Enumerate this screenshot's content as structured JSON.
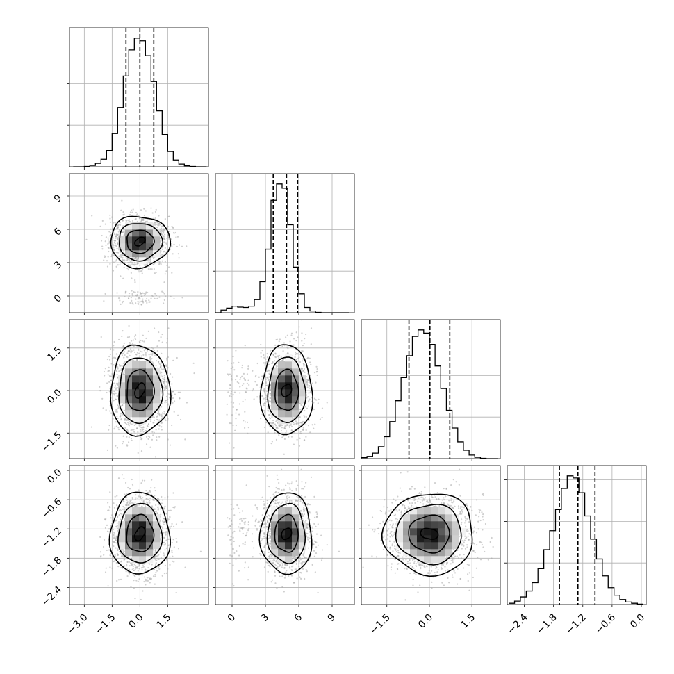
{
  "chart_data": {
    "type": "corner",
    "title": "",
    "grid": true,
    "parameters": [
      {
        "index": 0,
        "range": [
          -3.8,
          3.7
        ],
        "ticks": [
          -3.0,
          -1.5,
          0.0,
          1.5
        ],
        "tick_labels": [
          "−3.0",
          "−1.5",
          "0.0",
          "1.5"
        ],
        "quantiles": [
          -0.75,
          0.0,
          0.75
        ],
        "mean": 0.0,
        "sd": 0.73,
        "histogram": {
          "bin_edges": [
            -3.6,
            -3.3,
            -3.0,
            -2.7,
            -2.4,
            -2.1,
            -1.8,
            -1.5,
            -1.2,
            -0.9,
            -0.6,
            -0.3,
            0.0,
            0.3,
            0.6,
            0.9,
            1.2,
            1.5,
            1.8,
            2.1,
            2.4,
            2.7,
            3.0,
            3.3,
            3.6
          ],
          "counts": [
            0,
            0,
            1,
            4,
            10,
            22,
            48,
            98,
            175,
            268,
            345,
            380,
            372,
            328,
            252,
            165,
            95,
            45,
            20,
            8,
            3,
            1,
            0,
            0
          ]
        }
      },
      {
        "index": 1,
        "range": [
          -1.5,
          11.0
        ],
        "ticks": [
          0,
          3,
          6,
          9
        ],
        "tick_labels": [
          "0",
          "3",
          "6",
          "9"
        ],
        "quantiles": [
          3.7,
          4.9,
          5.9
        ],
        "mean": 4.9,
        "sd": 1.05,
        "histogram": {
          "bin_edges": [
            -1.5,
            -1.0,
            -0.5,
            0.0,
            0.5,
            1.0,
            1.5,
            2.0,
            2.5,
            3.0,
            3.5,
            4.0,
            4.5,
            5.0,
            5.5,
            6.0,
            6.5,
            7.0,
            7.5,
            8.0,
            8.5,
            9.0,
            9.5,
            10.0,
            10.5
          ],
          "counts": [
            0,
            8,
            14,
            20,
            17,
            16,
            20,
            40,
            95,
            195,
            345,
            395,
            382,
            270,
            140,
            58,
            16,
            5,
            1,
            0,
            0,
            0,
            0,
            0
          ]
        }
      },
      {
        "index": 2,
        "range": [
          -2.4,
          2.5
        ],
        "ticks": [
          -1.5,
          0.0,
          1.5
        ],
        "tick_labels": [
          "−1.5",
          "0.0",
          "1.5"
        ],
        "quantiles": [
          -0.72,
          0.02,
          0.72
        ],
        "mean": 0.0,
        "sd": 0.72,
        "histogram": {
          "bin_edges": [
            -2.4,
            -2.2,
            -2.0,
            -1.8,
            -1.6,
            -1.4,
            -1.2,
            -1.0,
            -0.8,
            -0.6,
            -0.4,
            -0.2,
            0.0,
            0.2,
            0.4,
            0.6,
            0.8,
            1.0,
            1.2,
            1.4,
            1.6,
            1.8,
            2.0,
            2.2,
            2.4
          ],
          "counts": [
            3,
            7,
            17,
            37,
            68,
            115,
            180,
            252,
            320,
            380,
            400,
            390,
            355,
            288,
            218,
            150,
            95,
            52,
            26,
            11,
            4,
            1,
            0,
            0
          ]
        }
      },
      {
        "index": 3,
        "range": [
          -2.75,
          0.1
        ],
        "ticks": [
          -2.4,
          -1.8,
          -1.2,
          -0.6,
          0.0
        ],
        "tick_labels": [
          "−2.4",
          "−1.8",
          "−1.2",
          "−0.6",
          "0.0"
        ],
        "quantiles": [
          -1.68,
          -1.3,
          -0.95
        ],
        "mean": -1.3,
        "sd": 0.38,
        "histogram": {
          "bin_edges": [
            -2.72,
            -2.6,
            -2.48,
            -2.36,
            -2.24,
            -2.12,
            -2.0,
            -1.88,
            -1.76,
            -1.64,
            -1.52,
            -1.4,
            -1.28,
            -1.16,
            -1.04,
            -0.92,
            -0.8,
            -0.68,
            -0.56,
            -0.44,
            -0.32,
            -0.2,
            -0.08,
            0.04
          ],
          "counts": [
            3,
            8,
            18,
            32,
            52,
            85,
            130,
            175,
            225,
            275,
            305,
            300,
            265,
            210,
            155,
            108,
            68,
            40,
            22,
            12,
            6,
            3,
            1
          ]
        }
      }
    ],
    "panel_edges": {
      "left": [
        100,
        310,
        520,
        730
      ],
      "top": [
        40,
        250,
        460,
        670
      ],
      "size": 200
    }
  }
}
